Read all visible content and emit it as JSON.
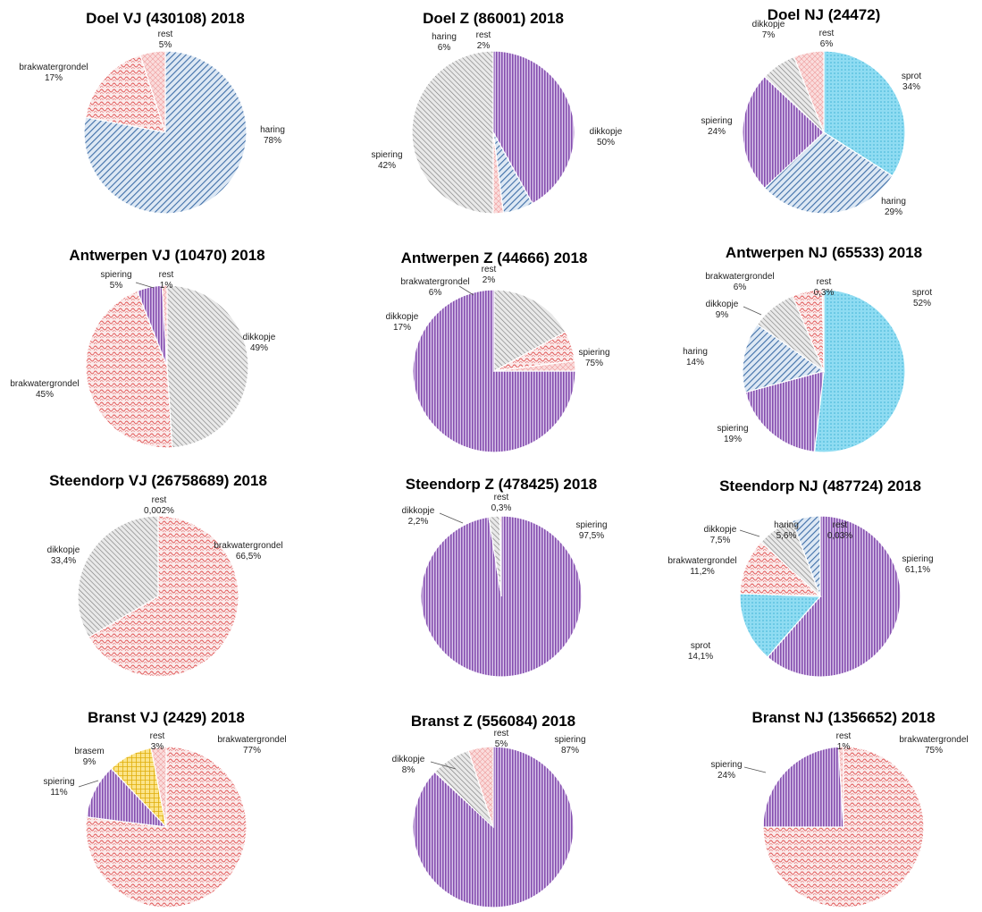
{
  "colors": {
    "haring": "#3f6fa8",
    "haring_light": "#6d9fd0",
    "brakwatergrondel": "#e05555",
    "rest": "#f0b8b8",
    "dikkopje": "#8c8c8c",
    "spiering": "#7a3fa8",
    "sprot": "#55c8e8",
    "brasem": "#f2c418"
  },
  "chart_data": [
    {
      "type": "pie",
      "title": "Doel VJ (430108) 2018",
      "slices": [
        {
          "name": "haring",
          "pct_label": "78%",
          "value": 78
        },
        {
          "name": "brakwatergrondel",
          "pct_label": "17%",
          "value": 17
        },
        {
          "name": "rest",
          "pct_label": "5%",
          "value": 5
        }
      ]
    },
    {
      "type": "pie",
      "title": "Doel Z (86001) 2018",
      "slices": [
        {
          "name": "dikkopje",
          "pct_label": "50%",
          "value": 50
        },
        {
          "name": "spiering",
          "pct_label": "42%",
          "value": 42
        },
        {
          "name": "haring",
          "pct_label": "6%",
          "value": 6
        },
        {
          "name": "rest",
          "pct_label": "2%",
          "value": 2
        }
      ]
    },
    {
      "type": "pie",
      "title": "Doel NJ (24472)",
      "slices": [
        {
          "name": "sprot",
          "pct_label": "34%",
          "value": 34
        },
        {
          "name": "haring",
          "pct_label": "29%",
          "value": 29
        },
        {
          "name": "spiering",
          "pct_label": "24%",
          "value": 24
        },
        {
          "name": "dikkopje",
          "pct_label": "7%",
          "value": 7
        },
        {
          "name": "rest",
          "pct_label": "6%",
          "value": 6
        }
      ]
    },
    {
      "type": "pie",
      "title": "Antwerpen VJ (10470) 2018",
      "slices": [
        {
          "name": "dikkopje",
          "pct_label": "49%",
          "value": 49
        },
        {
          "name": "brakwatergrondel",
          "pct_label": "45%",
          "value": 45
        },
        {
          "name": "spiering",
          "pct_label": "5%",
          "value": 5
        },
        {
          "name": "rest",
          "pct_label": "1%",
          "value": 1
        }
      ]
    },
    {
      "type": "pie",
      "title": "Antwerpen Z (44666) 2018",
      "slices": [
        {
          "name": "spiering",
          "pct_label": "75%",
          "value": 75
        },
        {
          "name": "dikkopje",
          "pct_label": "17%",
          "value": 17
        },
        {
          "name": "brakwatergrondel",
          "pct_label": "6%",
          "value": 6
        },
        {
          "name": "rest",
          "pct_label": "2%",
          "value": 2
        }
      ]
    },
    {
      "type": "pie",
      "title": "Antwerpen NJ (65533) 2018",
      "slices": [
        {
          "name": "sprot",
          "pct_label": "52%",
          "value": 52
        },
        {
          "name": "spiering",
          "pct_label": "19%",
          "value": 19
        },
        {
          "name": "haring",
          "pct_label": "14%",
          "value": 14
        },
        {
          "name": "dikkopje",
          "pct_label": "9%",
          "value": 9
        },
        {
          "name": "brakwatergrondel",
          "pct_label": "6%",
          "value": 6
        },
        {
          "name": "rest",
          "pct_label": "0,3%",
          "value": 0.3
        }
      ]
    },
    {
      "type": "pie",
      "title": "Steendorp VJ (26758689) 2018",
      "slices": [
        {
          "name": "brakwatergrondel",
          "pct_label": "66,5%",
          "value": 66.5
        },
        {
          "name": "dikkopje",
          "pct_label": "33,4%",
          "value": 33.4
        },
        {
          "name": "rest",
          "pct_label": "0,002%",
          "value": 0.002
        }
      ]
    },
    {
      "type": "pie",
      "title": "Steendorp Z (478425) 2018",
      "slices": [
        {
          "name": "spiering",
          "pct_label": "97,5%",
          "value": 97.5
        },
        {
          "name": "dikkopje",
          "pct_label": "2,2%",
          "value": 2.2
        },
        {
          "name": "rest",
          "pct_label": "0,3%",
          "value": 0.3
        }
      ]
    },
    {
      "type": "pie",
      "title": "Steendorp NJ (487724) 2018",
      "slices": [
        {
          "name": "spiering",
          "pct_label": "61,1%",
          "value": 61.1
        },
        {
          "name": "sprot",
          "pct_label": "14,1%",
          "value": 14.1
        },
        {
          "name": "brakwatergrondel",
          "pct_label": "11,2%",
          "value": 11.2
        },
        {
          "name": "dikkopje",
          "pct_label": "7,5%",
          "value": 7.5
        },
        {
          "name": "haring",
          "pct_label": "5,6%",
          "value": 5.6
        },
        {
          "name": "rest",
          "pct_label": "0,03%",
          "value": 0.03
        }
      ]
    },
    {
      "type": "pie",
      "title": "Branst VJ (2429) 2018",
      "slices": [
        {
          "name": "brakwatergrondel",
          "pct_label": "77%",
          "value": 77
        },
        {
          "name": "spiering",
          "pct_label": "11%",
          "value": 11
        },
        {
          "name": "brasem",
          "pct_label": "9%",
          "value": 9
        },
        {
          "name": "rest",
          "pct_label": "3%",
          "value": 3
        }
      ]
    },
    {
      "type": "pie",
      "title": "Branst Z (556084) 2018",
      "slices": [
        {
          "name": "spiering",
          "pct_label": "87%",
          "value": 87
        },
        {
          "name": "dikkopje",
          "pct_label": "8%",
          "value": 8
        },
        {
          "name": "rest",
          "pct_label": "5%",
          "value": 5
        }
      ]
    },
    {
      "type": "pie",
      "title": "Branst NJ (1356652) 2018",
      "slices": [
        {
          "name": "brakwatergrondel",
          "pct_label": "75%",
          "value": 75
        },
        {
          "name": "spiering",
          "pct_label": "24%",
          "value": 24
        },
        {
          "name": "rest",
          "pct_label": "1%",
          "value": 1
        }
      ]
    }
  ]
}
